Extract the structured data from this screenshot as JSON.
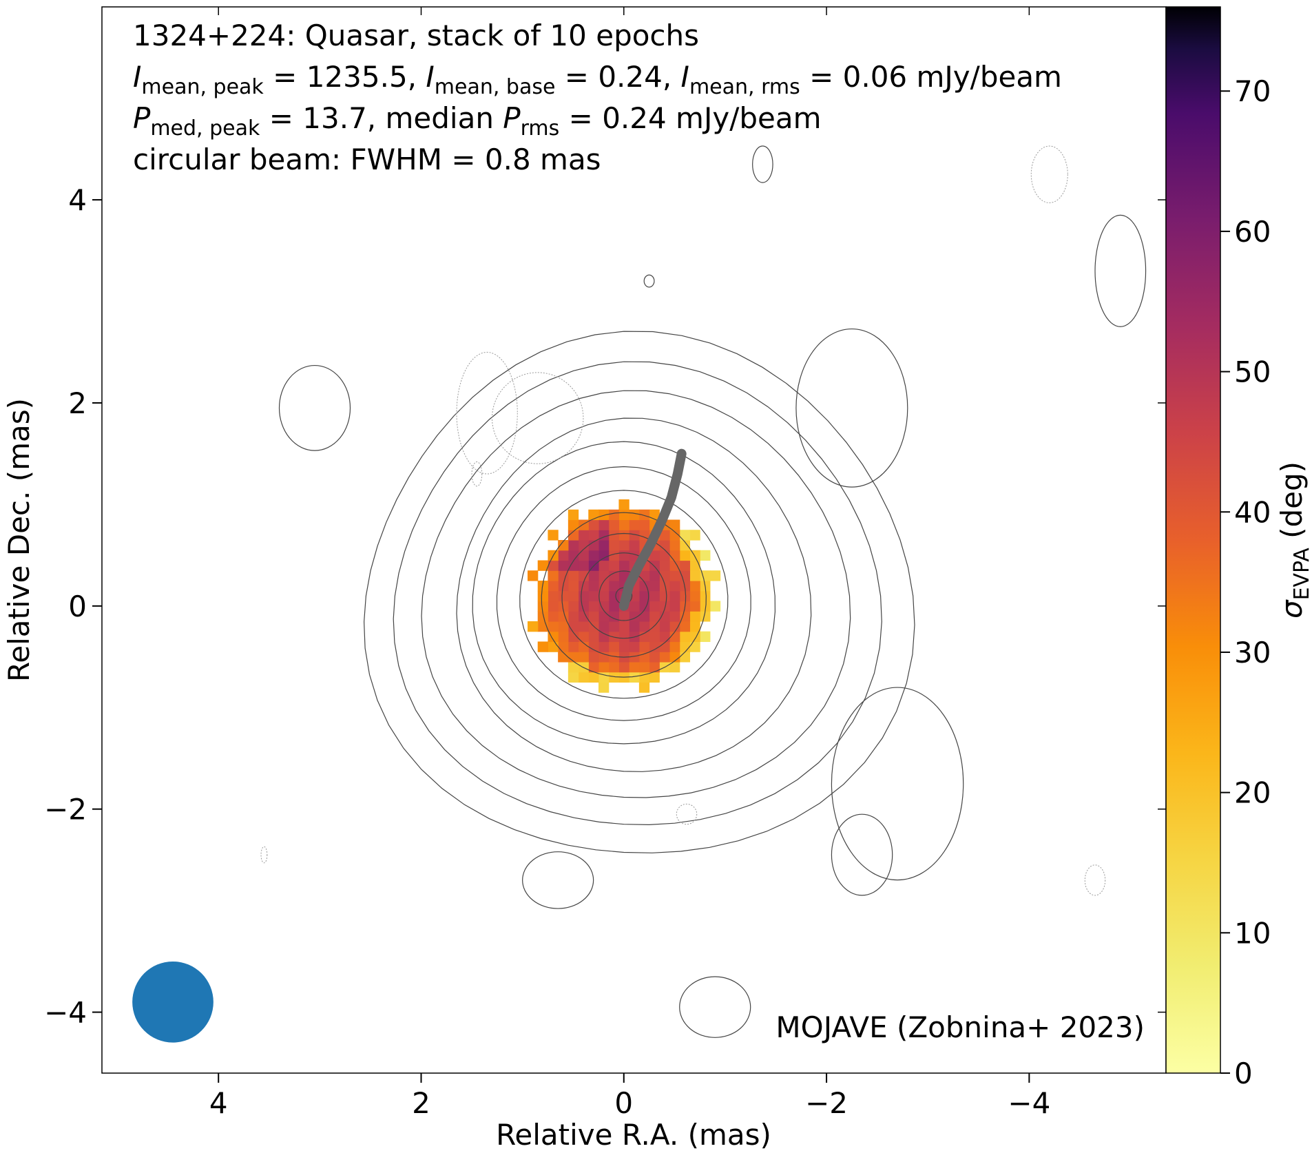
{
  "chart_data": {
    "type": "heatmap",
    "annotation_lines": [
      [
        {
          "t": "1324+224: Quasar, stack of 10 epochs"
        }
      ],
      [
        {
          "t": "I",
          "i": true
        },
        {
          "t": "mean, peak",
          "sub": true
        },
        {
          "t": " = 1235.5, "
        },
        {
          "t": "I",
          "i": true
        },
        {
          "t": "mean, base",
          "sub": true
        },
        {
          "t": " = 0.24, "
        },
        {
          "t": "I",
          "i": true
        },
        {
          "t": "mean, rms",
          "sub": true
        },
        {
          "t": " = 0.06 mJy/beam"
        }
      ],
      [
        {
          "t": "P",
          "i": true
        },
        {
          "t": "med, peak",
          "sub": true
        },
        {
          "t": " = 13.7, median "
        },
        {
          "t": "P",
          "i": true
        },
        {
          "t": "rms",
          "sub": true
        },
        {
          "t": " = 0.24 mJy/beam"
        }
      ],
      [
        {
          "t": "circular beam: FWHM = 0.8 mas"
        }
      ]
    ],
    "credit": "MOJAVE (Zobnina+ 2023)",
    "xlabel": "Relative R.A. (mas)",
    "ylabel": "Relative Dec. (mas)",
    "xlim": [
      5.15,
      -5.35
    ],
    "ylim": [
      -4.6,
      5.9
    ],
    "xticks": [
      4,
      2,
      0,
      -2,
      -4
    ],
    "xtick_labels": [
      "4",
      "2",
      "0",
      "−2",
      "−4"
    ],
    "yticks": [
      -4,
      -2,
      0,
      2,
      4
    ],
    "ytick_labels": [
      "−4",
      "−2",
      "0",
      "2",
      "4"
    ],
    "colorbar": {
      "label_symbol": "σ",
      "label_sub": "EVPA",
      "label_unit": " (deg)",
      "range": [
        0,
        76
      ],
      "ticks": [
        0,
        10,
        20,
        30,
        40,
        50,
        60,
        70
      ],
      "colormap": "inferno_r"
    },
    "beam": {
      "fwhm_mas": 0.8,
      "center": [
        4.45,
        -3.9
      ],
      "color": "#1f77b4"
    },
    "evpa_map": {
      "pixel_size_mas": 0.1,
      "center": [
        0.0,
        0.1
      ],
      "radius_mas": 0.9,
      "sigma_center_deg": 50,
      "sigma_edge_deg": 28,
      "edge_low_east_deg": 12
    },
    "contours": {
      "peak": 1235.5,
      "base": 0.24,
      "levels_count": 12,
      "center": [
        0.0,
        0.1
      ]
    },
    "jet_ridge": {
      "color": "#666666",
      "x": [
        0.0,
        -0.05,
        -0.15,
        -0.27,
        -0.38,
        -0.47,
        -0.53,
        -0.57
      ],
      "y": [
        0.0,
        0.2,
        0.4,
        0.62,
        0.85,
        1.07,
        1.3,
        1.5
      ]
    }
  }
}
